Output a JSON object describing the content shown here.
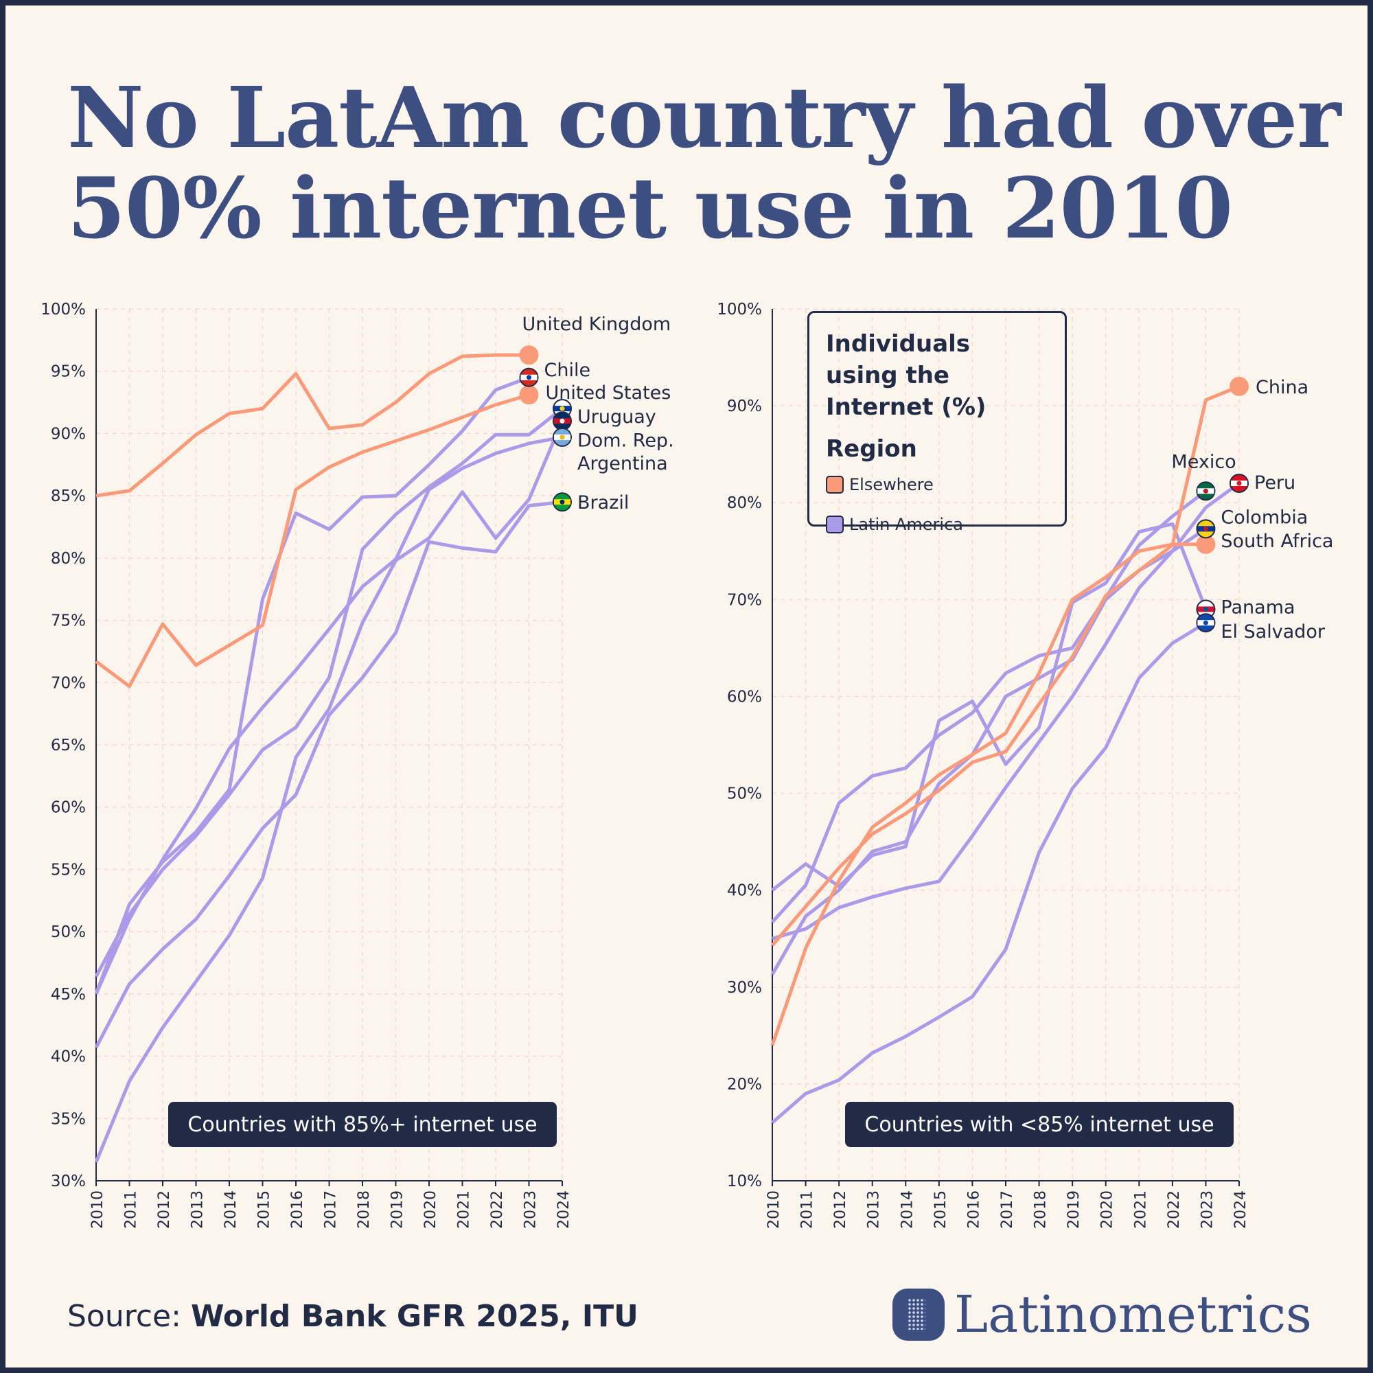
{
  "title": {
    "line1": "No LatAm country had over",
    "line2": "50% internet use in 2010"
  },
  "source": {
    "prefix": "Source: ",
    "text": "World Bank GFR 2025, ITU"
  },
  "brand": "Latinometrics",
  "legend": {
    "title": "Individuals using the Internet (%)",
    "region_title": "Region",
    "items": [
      {
        "label": "Elsewhere",
        "color": "#fb9a78"
      },
      {
        "label": "Latin America",
        "color": "#ab9ae8"
      }
    ]
  },
  "chart_data": [
    {
      "type": "line",
      "tag": "Countries with 85%+ internet use",
      "x": [
        2010,
        2011,
        2012,
        2013,
        2014,
        2015,
        2016,
        2017,
        2018,
        2019,
        2020,
        2021,
        2022,
        2023,
        2024
      ],
      "ylim": [
        30,
        100
      ],
      "yticks": [
        "30%",
        "35%",
        "40%",
        "45%",
        "50%",
        "55%",
        "60%",
        "65%",
        "70%",
        "75%",
        "80%",
        "85%",
        "90%",
        "95%",
        "100%"
      ],
      "grid": true,
      "series": [
        {
          "name": "United Kingdom",
          "region": "Elsewhere",
          "flag": "none",
          "values": [
            85.0,
            85.4,
            87.6,
            89.9,
            91.6,
            92.0,
            94.8,
            90.4,
            90.7,
            92.5,
            94.8,
            96.2,
            96.3,
            96.3,
            null
          ]
        },
        {
          "name": "United States",
          "region": "Elsewhere",
          "flag": "none",
          "values": [
            71.7,
            69.7,
            74.7,
            71.4,
            73.0,
            74.6,
            85.5,
            87.3,
            88.5,
            89.4,
            90.3,
            91.3,
            92.3,
            93.1,
            null
          ]
        },
        {
          "name": "Chile",
          "region": "Latin America",
          "flag": "chile",
          "values": [
            45.0,
            52.2,
            55.6,
            58.0,
            61.4,
            76.7,
            83.6,
            82.3,
            84.9,
            85.0,
            87.5,
            90.2,
            93.5,
            94.5,
            null
          ]
        },
        {
          "name": "Uruguay",
          "region": "Latin America",
          "flag": "uruguay",
          "values": [
            46.4,
            51.4,
            55.0,
            57.7,
            61.0,
            64.6,
            66.4,
            70.4,
            80.7,
            83.5,
            85.7,
            87.6,
            89.9,
            89.9,
            92.0
          ]
        },
        {
          "name": "Dom. Rep.",
          "region": "Latin America",
          "flag": "dominican-republic",
          "values": [
            31.5,
            38.0,
            42.3,
            46.0,
            49.7,
            54.3,
            64.0,
            67.9,
            74.8,
            79.8,
            81.6,
            85.3,
            81.6,
            84.7,
            91.0
          ]
        },
        {
          "name": "Argentina",
          "region": "Latin America",
          "flag": "argentina",
          "values": [
            45.0,
            51.0,
            55.8,
            59.9,
            64.7,
            68.0,
            71.0,
            74.3,
            77.7,
            79.9,
            85.5,
            87.2,
            88.4,
            89.2,
            89.7
          ]
        },
        {
          "name": "Brazil",
          "region": "Latin America",
          "flag": "brazil",
          "values": [
            40.7,
            45.8,
            48.6,
            51.0,
            54.5,
            58.3,
            61.0,
            67.4,
            70.4,
            74.0,
            81.3,
            80.8,
            80.5,
            84.2,
            84.5
          ]
        }
      ]
    },
    {
      "type": "line",
      "tag": "Countries with <85% internet use",
      "x": [
        2010,
        2011,
        2012,
        2013,
        2014,
        2015,
        2016,
        2017,
        2018,
        2019,
        2020,
        2021,
        2022,
        2023,
        2024
      ],
      "ylim": [
        10,
        100
      ],
      "yticks": [
        "10%",
        "20%",
        "30%",
        "40%",
        "50%",
        "60%",
        "70%",
        "80%",
        "90%",
        "100%"
      ],
      "grid": true,
      "series": [
        {
          "name": "China",
          "region": "Elsewhere",
          "flag": "none",
          "values": [
            34.3,
            38.3,
            42.3,
            45.8,
            47.9,
            50.3,
            53.2,
            54.3,
            59.2,
            64.1,
            70.4,
            73.0,
            75.6,
            90.6,
            92.0
          ]
        },
        {
          "name": "South Africa",
          "region": "Elsewhere",
          "flag": "none",
          "values": [
            24.0,
            34.0,
            41.0,
            46.5,
            49.0,
            51.9,
            54.0,
            56.2,
            62.4,
            70.0,
            72.3,
            75.0,
            75.7,
            75.7,
            null
          ]
        },
        {
          "name": "Mexico",
          "region": "Latin America",
          "flag": "mexico",
          "values": [
            36.7,
            40.5,
            49.0,
            51.8,
            52.6,
            56.0,
            58.3,
            62.4,
            64.2,
            65.0,
            70.2,
            75.6,
            78.6,
            81.2,
            null
          ]
        },
        {
          "name": "Peru",
          "region": "Latin America",
          "flag": "peru",
          "values": [
            35.0,
            36.0,
            38.2,
            39.3,
            40.2,
            40.9,
            45.6,
            50.6,
            55.3,
            60.0,
            65.4,
            71.2,
            75.0,
            79.5,
            82.0
          ]
        },
        {
          "name": "Colombia",
          "region": "Latin America",
          "flag": "colombia",
          "values": [
            31.3,
            37.3,
            40.0,
            44.0,
            45.0,
            51.0,
            54.0,
            60.0,
            61.9,
            63.8,
            70.0,
            73.0,
            75.0,
            77.3,
            null
          ]
        },
        {
          "name": "Panama",
          "region": "Latin America",
          "flag": "panama",
          "values": [
            40.0,
            42.7,
            40.4,
            43.6,
            44.5,
            57.5,
            59.5,
            53.0,
            56.8,
            69.7,
            71.7,
            77.0,
            77.8,
            69.0,
            null
          ]
        },
        {
          "name": "El Salvador",
          "region": "Latin America",
          "flag": "el-salvador",
          "values": [
            16.0,
            19.0,
            20.4,
            23.2,
            24.9,
            26.9,
            29.0,
            33.9,
            43.9,
            50.5,
            54.7,
            61.9,
            65.5,
            67.6,
            null
          ]
        }
      ]
    }
  ]
}
